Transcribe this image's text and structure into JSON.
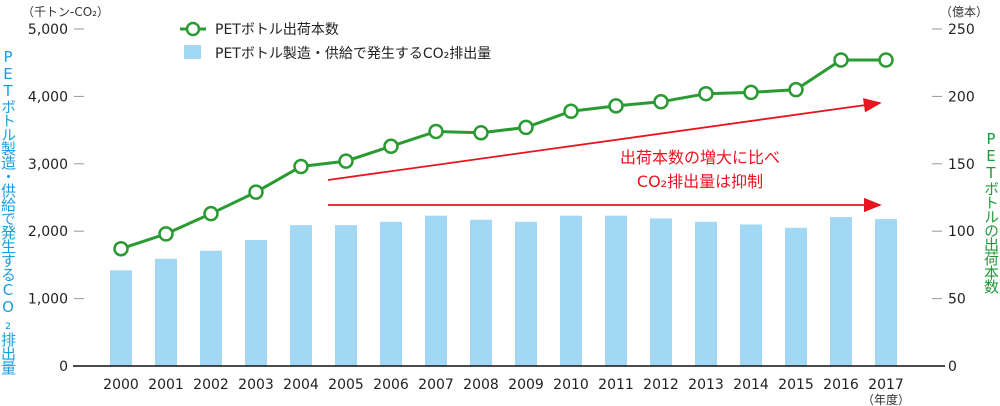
{
  "chart_data": {
    "type": "bar+line",
    "categories": [
      "2000",
      "2001",
      "2002",
      "2003",
      "2004",
      "2005",
      "2006",
      "2007",
      "2008",
      "2009",
      "2010",
      "2011",
      "2012",
      "2013",
      "2014",
      "2015",
      "2016",
      "2017"
    ],
    "x_unit": "（年度）",
    "left_axis": {
      "unit": "（千トン-CO₂）",
      "label": "PETボトル製造・供給で発生するCO₂排出量",
      "ylim": [
        0,
        5000
      ],
      "ticks": [
        "0",
        "1,000",
        "2,000",
        "3,000",
        "4,000",
        "5,000"
      ],
      "color": "#1a9ee0"
    },
    "right_axis": {
      "unit": "（億本）",
      "label": "PETボトルの出荷本数",
      "ylim": [
        0,
        250
      ],
      "ticks": [
        "0",
        "50",
        "100",
        "150",
        "200",
        "250"
      ],
      "color": "#1e9a3a"
    },
    "series": [
      {
        "name": "PETボトル出荷本数",
        "type": "line",
        "axis": "right",
        "color": "#2a9a32",
        "values": [
          87,
          98,
          113,
          129,
          148,
          152,
          163,
          174,
          173,
          177,
          189,
          193,
          196,
          202,
          203,
          205,
          227,
          227
        ]
      },
      {
        "name": "PETボトル製造・供給で発生するCO₂排出量",
        "type": "bar",
        "axis": "left",
        "color": "#a3d8f4",
        "values": [
          1420,
          1590,
          1710,
          1870,
          2090,
          2090,
          2140,
          2230,
          2170,
          2140,
          2230,
          2230,
          2190,
          2140,
          2100,
          2050,
          2210,
          2180
        ]
      }
    ],
    "annotation": {
      "lines": [
        "出荷本数の増大に比べ",
        "CO₂排出量は抑制"
      ],
      "color": "#e8141e"
    },
    "legend": "top-center",
    "grid": false
  }
}
